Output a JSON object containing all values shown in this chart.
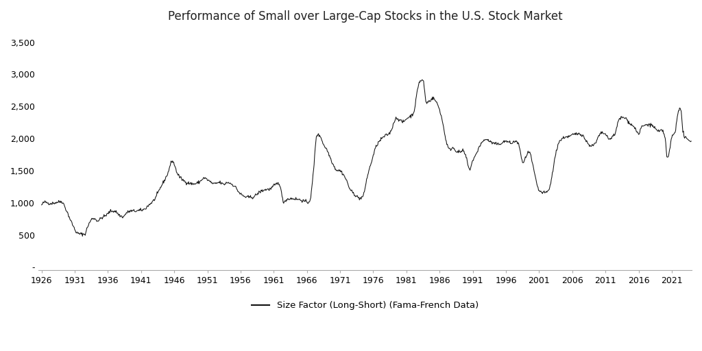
{
  "title": "Performance of Small over Large-Cap Stocks in the U.S. Stock Market",
  "legend_label": "Size Factor (Long-Short) (Fama-French Data)",
  "line_color": "#111111",
  "background_color": "#ffffff",
  "yticks": [
    0,
    500,
    1000,
    1500,
    2000,
    2500,
    3000,
    3500
  ],
  "ytick_labels": [
    "-",
    "500",
    "1,000",
    "1,500",
    "2,000",
    "2,500",
    "3,000",
    "3,500"
  ],
  "xticks": [
    1926,
    1931,
    1936,
    1941,
    1946,
    1951,
    1956,
    1961,
    1966,
    1971,
    1976,
    1981,
    1986,
    1991,
    1996,
    2001,
    2006,
    2011,
    2016,
    2021
  ],
  "ylim": [
    -50,
    3700
  ],
  "xlim": [
    1925.5,
    2024.0
  ],
  "anchors": [
    [
      1926.0,
      960
    ],
    [
      1926.5,
      1010
    ],
    [
      1927.3,
      990
    ],
    [
      1928.0,
      1000
    ],
    [
      1929.0,
      1020
    ],
    [
      1929.8,
      870
    ],
    [
      1930.5,
      700
    ],
    [
      1931.5,
      520
    ],
    [
      1932.5,
      510
    ],
    [
      1933.0,
      640
    ],
    [
      1933.8,
      760
    ],
    [
      1934.5,
      720
    ],
    [
      1935.0,
      760
    ],
    [
      1935.8,
      810
    ],
    [
      1936.5,
      870
    ],
    [
      1937.0,
      870
    ],
    [
      1937.8,
      800
    ],
    [
      1938.3,
      780
    ],
    [
      1938.8,
      840
    ],
    [
      1939.5,
      870
    ],
    [
      1940.0,
      870
    ],
    [
      1940.8,
      880
    ],
    [
      1941.5,
      900
    ],
    [
      1942.0,
      950
    ],
    [
      1943.0,
      1050
    ],
    [
      1944.0,
      1250
    ],
    [
      1945.0,
      1450
    ],
    [
      1945.7,
      1650
    ],
    [
      1946.5,
      1450
    ],
    [
      1947.0,
      1380
    ],
    [
      1948.0,
      1310
    ],
    [
      1949.0,
      1290
    ],
    [
      1949.8,
      1320
    ],
    [
      1950.5,
      1380
    ],
    [
      1951.2,
      1340
    ],
    [
      1952.0,
      1290
    ],
    [
      1952.8,
      1310
    ],
    [
      1953.5,
      1280
    ],
    [
      1954.0,
      1310
    ],
    [
      1955.0,
      1260
    ],
    [
      1956.0,
      1130
    ],
    [
      1957.0,
      1080
    ],
    [
      1957.8,
      1080
    ],
    [
      1958.5,
      1130
    ],
    [
      1959.0,
      1170
    ],
    [
      1959.8,
      1200
    ],
    [
      1960.5,
      1210
    ],
    [
      1961.0,
      1260
    ],
    [
      1961.8,
      1300
    ],
    [
      1962.5,
      1010
    ],
    [
      1963.0,
      1050
    ],
    [
      1963.8,
      1060
    ],
    [
      1964.5,
      1050
    ],
    [
      1965.0,
      1040
    ],
    [
      1965.5,
      1020
    ],
    [
      1966.2,
      1000
    ],
    [
      1966.5,
      1050
    ],
    [
      1967.0,
      1500
    ],
    [
      1967.5,
      2050
    ],
    [
      1968.0,
      2030
    ],
    [
      1968.5,
      1900
    ],
    [
      1969.0,
      1820
    ],
    [
      1969.5,
      1700
    ],
    [
      1970.0,
      1580
    ],
    [
      1970.5,
      1500
    ],
    [
      1971.0,
      1490
    ],
    [
      1971.5,
      1430
    ],
    [
      1972.0,
      1330
    ],
    [
      1972.5,
      1200
    ],
    [
      1973.2,
      1120
    ],
    [
      1974.0,
      1060
    ],
    [
      1974.5,
      1100
    ],
    [
      1975.0,
      1350
    ],
    [
      1975.8,
      1650
    ],
    [
      1976.5,
      1880
    ],
    [
      1977.5,
      2010
    ],
    [
      1978.5,
      2080
    ],
    [
      1979.5,
      2310
    ],
    [
      1980.5,
      2250
    ],
    [
      1981.0,
      2300
    ],
    [
      1982.0,
      2380
    ],
    [
      1983.0,
      2880
    ],
    [
      1983.5,
      2900
    ],
    [
      1984.0,
      2550
    ],
    [
      1984.5,
      2580
    ],
    [
      1985.0,
      2620
    ],
    [
      1985.5,
      2560
    ],
    [
      1986.0,
      2440
    ],
    [
      1986.5,
      2220
    ],
    [
      1987.0,
      1950
    ],
    [
      1987.5,
      1820
    ],
    [
      1988.0,
      1850
    ],
    [
      1988.5,
      1800
    ],
    [
      1989.0,
      1780
    ],
    [
      1989.5,
      1800
    ],
    [
      1990.0,
      1700
    ],
    [
      1990.5,
      1510
    ],
    [
      1991.0,
      1650
    ],
    [
      1991.5,
      1740
    ],
    [
      1992.0,
      1870
    ],
    [
      1992.5,
      1940
    ],
    [
      1993.0,
      1980
    ],
    [
      1993.5,
      1950
    ],
    [
      1994.0,
      1920
    ],
    [
      1994.8,
      1900
    ],
    [
      1995.5,
      1930
    ],
    [
      1996.0,
      1950
    ],
    [
      1996.8,
      1920
    ],
    [
      1997.5,
      1950
    ],
    [
      1998.0,
      1870
    ],
    [
      1998.5,
      1620
    ],
    [
      1999.0,
      1700
    ],
    [
      1999.5,
      1780
    ],
    [
      2000.0,
      1600
    ],
    [
      2000.5,
      1350
    ],
    [
      2001.0,
      1180
    ],
    [
      2001.5,
      1150
    ],
    [
      2002.0,
      1150
    ],
    [
      2002.5,
      1200
    ],
    [
      2003.0,
      1450
    ],
    [
      2003.5,
      1750
    ],
    [
      2004.0,
      1940
    ],
    [
      2004.5,
      1990
    ],
    [
      2005.0,
      2020
    ],
    [
      2005.5,
      2020
    ],
    [
      2006.0,
      2050
    ],
    [
      2006.5,
      2060
    ],
    [
      2007.0,
      2070
    ],
    [
      2007.5,
      2050
    ],
    [
      2008.0,
      1970
    ],
    [
      2008.5,
      1900
    ],
    [
      2009.0,
      1880
    ],
    [
      2009.5,
      1920
    ],
    [
      2010.0,
      2030
    ],
    [
      2010.5,
      2080
    ],
    [
      2011.0,
      2060
    ],
    [
      2011.5,
      1980
    ],
    [
      2012.0,
      2020
    ],
    [
      2012.5,
      2080
    ],
    [
      2013.0,
      2280
    ],
    [
      2013.5,
      2320
    ],
    [
      2014.0,
      2310
    ],
    [
      2014.5,
      2250
    ],
    [
      2015.0,
      2200
    ],
    [
      2015.5,
      2150
    ],
    [
      2016.0,
      2060
    ],
    [
      2016.5,
      2180
    ],
    [
      2017.0,
      2200
    ],
    [
      2017.5,
      2210
    ],
    [
      2018.0,
      2200
    ],
    [
      2018.5,
      2150
    ],
    [
      2019.0,
      2100
    ],
    [
      2019.5,
      2120
    ],
    [
      2020.0,
      2000
    ],
    [
      2020.3,
      1680
    ],
    [
      2020.5,
      1720
    ],
    [
      2021.0,
      2010
    ],
    [
      2021.5,
      2100
    ],
    [
      2022.0,
      2430
    ],
    [
      2022.3,
      2450
    ],
    [
      2022.7,
      2100
    ],
    [
      2023.0,
      2000
    ],
    [
      2023.3,
      1980
    ],
    [
      2023.5,
      1960
    ],
    [
      2023.8,
      1950
    ]
  ]
}
